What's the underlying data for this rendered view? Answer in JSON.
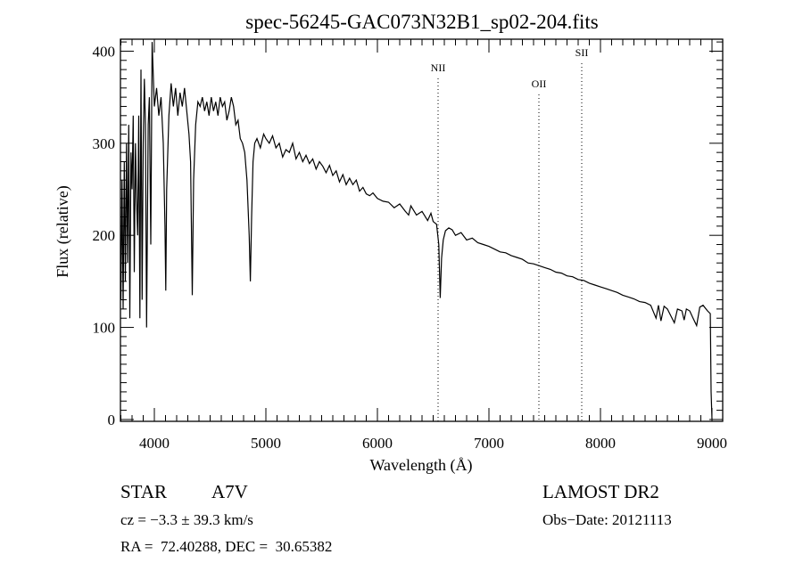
{
  "chart_data": {
    "type": "line",
    "title": "spec-56245-GAC073N32B1_sp02-204.fits",
    "xlabel": "Wavelength (Å)",
    "ylabel": "Flux (relative)",
    "xlim": [
      3696,
      9096
    ],
    "ylim": [
      -2,
      413
    ],
    "xticks": [
      4000,
      5000,
      6000,
      7000,
      8000,
      9000
    ],
    "yticks": [
      0,
      100,
      200,
      300,
      400
    ],
    "grid": false,
    "lines": [
      {
        "label": "NII",
        "x": 6544
      },
      {
        "label": "OII",
        "x": 7448
      },
      {
        "label": "SII",
        "x": 7832
      }
    ],
    "series": [
      {
        "name": "spectrum",
        "points": [
          [
            3700,
            130
          ],
          [
            3710,
            260
          ],
          [
            3720,
            120
          ],
          [
            3730,
            280
          ],
          [
            3740,
            150
          ],
          [
            3750,
            300
          ],
          [
            3760,
            170
          ],
          [
            3770,
            320
          ],
          [
            3780,
            110
          ],
          [
            3790,
            290
          ],
          [
            3800,
            250
          ],
          [
            3810,
            330
          ],
          [
            3820,
            160
          ],
          [
            3830,
            300
          ],
          [
            3840,
            240
          ],
          [
            3850,
            200
          ],
          [
            3860,
            330
          ],
          [
            3870,
            110
          ],
          [
            3880,
            380
          ],
          [
            3890,
            130
          ],
          [
            3900,
            300
          ],
          [
            3910,
            370
          ],
          [
            3920,
            320
          ],
          [
            3930,
            100
          ],
          [
            3945,
            320
          ],
          [
            3955,
            350
          ],
          [
            3968,
            190
          ],
          [
            3980,
            410
          ],
          [
            4000,
            340
          ],
          [
            4020,
            360
          ],
          [
            4040,
            330
          ],
          [
            4060,
            350
          ],
          [
            4080,
            300
          ],
          [
            4095,
            210
          ],
          [
            4102,
            140
          ],
          [
            4110,
            250
          ],
          [
            4130,
            330
          ],
          [
            4150,
            365
          ],
          [
            4170,
            340
          ],
          [
            4190,
            360
          ],
          [
            4210,
            330
          ],
          [
            4230,
            355
          ],
          [
            4250,
            340
          ],
          [
            4270,
            360
          ],
          [
            4290,
            335
          ],
          [
            4310,
            310
          ],
          [
            4325,
            280
          ],
          [
            4340,
            135
          ],
          [
            4352,
            260
          ],
          [
            4370,
            320
          ],
          [
            4390,
            345
          ],
          [
            4410,
            340
          ],
          [
            4430,
            350
          ],
          [
            4450,
            335
          ],
          [
            4470,
            345
          ],
          [
            4490,
            330
          ],
          [
            4510,
            350
          ],
          [
            4530,
            335
          ],
          [
            4550,
            345
          ],
          [
            4570,
            330
          ],
          [
            4590,
            350
          ],
          [
            4610,
            340
          ],
          [
            4630,
            345
          ],
          [
            4650,
            325
          ],
          [
            4670,
            335
          ],
          [
            4690,
            350
          ],
          [
            4710,
            340
          ],
          [
            4730,
            320
          ],
          [
            4750,
            325
          ],
          [
            4770,
            305
          ],
          [
            4790,
            300
          ],
          [
            4810,
            290
          ],
          [
            4830,
            260
          ],
          [
            4850,
            200
          ],
          [
            4861,
            150
          ],
          [
            4872,
            220
          ],
          [
            4885,
            280
          ],
          [
            4900,
            300
          ],
          [
            4920,
            305
          ],
          [
            4950,
            295
          ],
          [
            4980,
            310
          ],
          [
            5000,
            305
          ],
          [
            5030,
            300
          ],
          [
            5060,
            308
          ],
          [
            5090,
            295
          ],
          [
            5120,
            300
          ],
          [
            5150,
            285
          ],
          [
            5180,
            293
          ],
          [
            5210,
            290
          ],
          [
            5240,
            300
          ],
          [
            5270,
            283
          ],
          [
            5300,
            290
          ],
          [
            5330,
            280
          ],
          [
            5360,
            287
          ],
          [
            5390,
            278
          ],
          [
            5420,
            283
          ],
          [
            5450,
            272
          ],
          [
            5480,
            280
          ],
          [
            5510,
            275
          ],
          [
            5540,
            268
          ],
          [
            5570,
            276
          ],
          [
            5600,
            265
          ],
          [
            5630,
            270
          ],
          [
            5660,
            258
          ],
          [
            5690,
            266
          ],
          [
            5720,
            255
          ],
          [
            5750,
            262
          ],
          [
            5780,
            255
          ],
          [
            5810,
            260
          ],
          [
            5840,
            248
          ],
          [
            5870,
            252
          ],
          [
            5900,
            245
          ],
          [
            5930,
            243
          ],
          [
            5960,
            246
          ],
          [
            6000,
            240
          ],
          [
            6050,
            237
          ],
          [
            6100,
            236
          ],
          [
            6150,
            230
          ],
          [
            6200,
            234
          ],
          [
            6250,
            226
          ],
          [
            6280,
            222
          ],
          [
            6300,
            232
          ],
          [
            6350,
            222
          ],
          [
            6400,
            226
          ],
          [
            6450,
            216
          ],
          [
            6480,
            224
          ],
          [
            6500,
            215
          ],
          [
            6530,
            212
          ],
          [
            6550,
            190
          ],
          [
            6563,
            132
          ],
          [
            6575,
            175
          ],
          [
            6590,
            195
          ],
          [
            6610,
            205
          ],
          [
            6640,
            208
          ],
          [
            6670,
            206
          ],
          [
            6700,
            200
          ],
          [
            6750,
            203
          ],
          [
            6800,
            195
          ],
          [
            6850,
            197
          ],
          [
            6900,
            192
          ],
          [
            6950,
            190
          ],
          [
            7000,
            188
          ],
          [
            7050,
            185
          ],
          [
            7100,
            182
          ],
          [
            7150,
            181
          ],
          [
            7200,
            178
          ],
          [
            7250,
            176
          ],
          [
            7300,
            174
          ],
          [
            7350,
            170
          ],
          [
            7400,
            169
          ],
          [
            7450,
            167
          ],
          [
            7500,
            165
          ],
          [
            7550,
            163
          ],
          [
            7600,
            160
          ],
          [
            7650,
            159
          ],
          [
            7700,
            156
          ],
          [
            7750,
            155
          ],
          [
            7800,
            152
          ],
          [
            7850,
            151
          ],
          [
            7900,
            148
          ],
          [
            7950,
            146
          ],
          [
            8000,
            144
          ],
          [
            8050,
            142
          ],
          [
            8100,
            140
          ],
          [
            8150,
            138
          ],
          [
            8200,
            135
          ],
          [
            8250,
            133
          ],
          [
            8300,
            131
          ],
          [
            8350,
            128
          ],
          [
            8400,
            127
          ],
          [
            8450,
            124
          ],
          [
            8498,
            110
          ],
          [
            8520,
            124
          ],
          [
            8542,
            107
          ],
          [
            8570,
            123
          ],
          [
            8600,
            120
          ],
          [
            8662,
            105
          ],
          [
            8690,
            120
          ],
          [
            8730,
            118
          ],
          [
            8750,
            108
          ],
          [
            8770,
            120
          ],
          [
            8800,
            118
          ],
          [
            8830,
            110
          ],
          [
            8862,
            102
          ],
          [
            8890,
            122
          ],
          [
            8920,
            124
          ],
          [
            8960,
            118
          ],
          [
            8985,
            115
          ],
          [
            8992,
            30
          ],
          [
            9000,
            0
          ]
        ]
      }
    ]
  },
  "info": {
    "object_type": "STAR",
    "subclass": "A7V",
    "survey": "LAMOST DR2",
    "cz": "cz = −3.3 ± 39.3 km/s",
    "obs_date": "Obs−Date: 20121113",
    "coords": "RA =  72.40288, DEC =  30.65382"
  }
}
